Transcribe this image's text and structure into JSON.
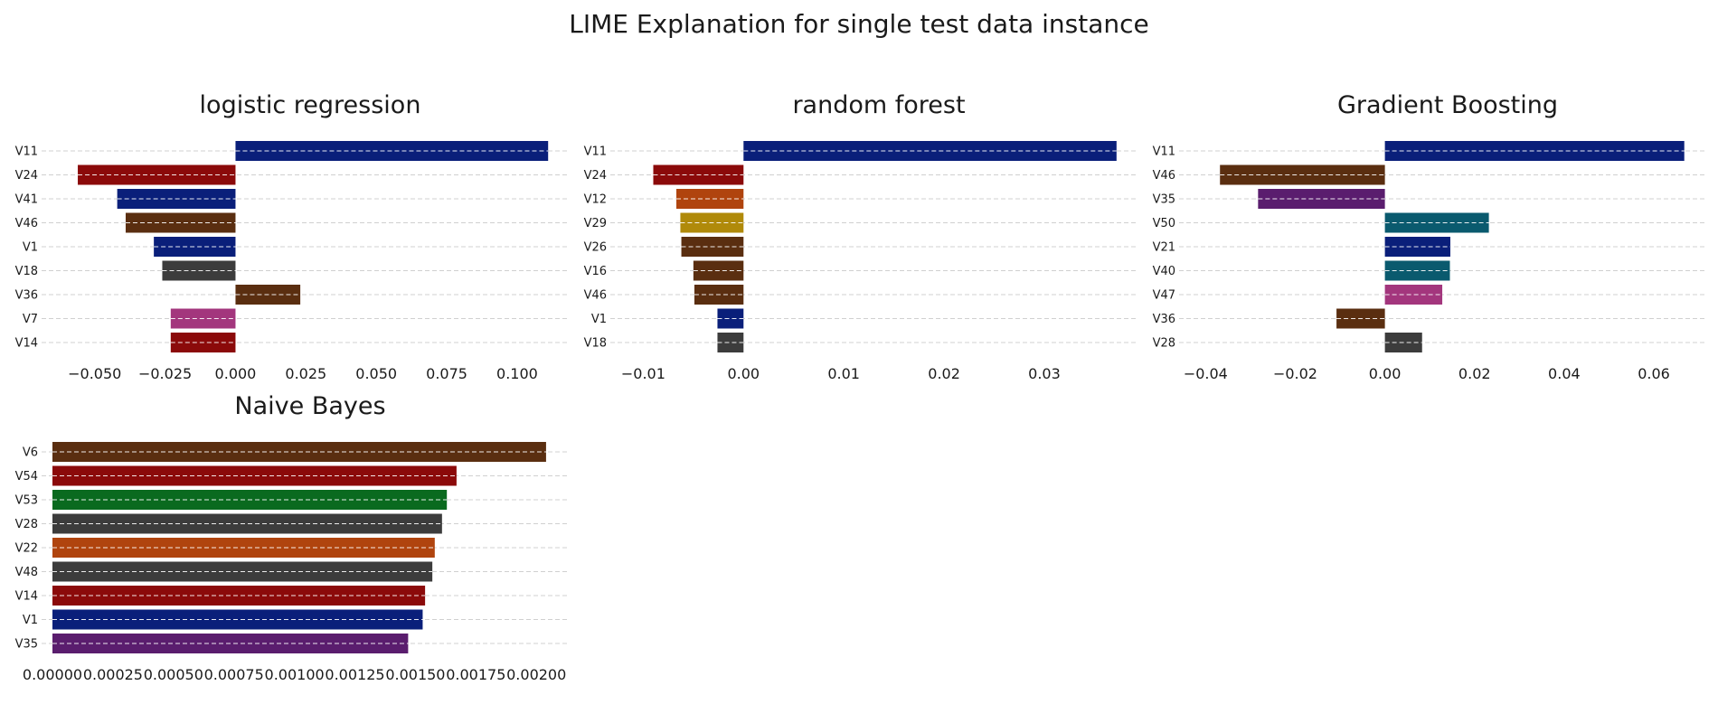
{
  "suptitle": "LIME Explanation for single test data instance",
  "chart_data": [
    {
      "type": "bar",
      "orientation": "horizontal",
      "title": "logistic regression",
      "categories": [
        "V11",
        "V24",
        "V41",
        "V46",
        "V1",
        "V18",
        "V36",
        "V7",
        "V14"
      ],
      "values": [
        0.111,
        -0.056,
        -0.042,
        -0.039,
        -0.029,
        -0.026,
        0.023,
        -0.023,
        -0.023
      ],
      "colors": [
        "#0a1f7a",
        "#8b0a0a",
        "#0a1f7a",
        "#5a2e10",
        "#0a1f7a",
        "#3c3c3c",
        "#5a2e10",
        "#a3367d",
        "#8b0a0a"
      ],
      "xlim": [
        -0.065,
        0.118
      ],
      "xticks": [
        -0.05,
        -0.025,
        0.0,
        0.025,
        0.05,
        0.075,
        0.1
      ],
      "xtick_labels": [
        "−0.050",
        "−0.025",
        "0.000",
        "0.025",
        "0.050",
        "0.075",
        "0.100"
      ],
      "grid": "horizontal dashed"
    },
    {
      "type": "bar",
      "orientation": "horizontal",
      "title": "random forest",
      "categories": [
        "V11",
        "V24",
        "V12",
        "V29",
        "V26",
        "V16",
        "V46",
        "V1",
        "V18"
      ],
      "values": [
        0.0372,
        -0.009,
        -0.0067,
        -0.0063,
        -0.0062,
        -0.005,
        -0.0049,
        -0.0026,
        -0.0026
      ],
      "colors": [
        "#0a1f7a",
        "#8b0a0a",
        "#b0440e",
        "#b08a0a",
        "#5a2e10",
        "#5a2e10",
        "#5a2e10",
        "#0a1f7a",
        "#3c3c3c"
      ],
      "xlim": [
        -0.0122,
        0.0392
      ],
      "xticks": [
        -0.01,
        0.0,
        0.01,
        0.02,
        0.03
      ],
      "xtick_labels": [
        "−0.01",
        "0.00",
        "0.01",
        "0.02",
        "0.03"
      ],
      "grid": "horizontal dashed"
    },
    {
      "type": "bar",
      "orientation": "horizontal",
      "title": "Gradient Boosting",
      "categories": [
        "V11",
        "V46",
        "V35",
        "V50",
        "V21",
        "V40",
        "V47",
        "V36",
        "V28"
      ],
      "values": [
        0.0668,
        -0.0368,
        -0.0283,
        0.0232,
        0.0146,
        0.0145,
        0.0128,
        -0.0108,
        0.0083
      ],
      "colors": [
        "#0a1f7a",
        "#5a2e10",
        "#5a1d6e",
        "#0a5a6e",
        "#0a1f7a",
        "#0a5a6e",
        "#a3367d",
        "#5a2e10",
        "#3c3c3c"
      ],
      "xlim": [
        -0.0435,
        0.0715
      ],
      "xticks": [
        -0.04,
        -0.02,
        0.0,
        0.02,
        0.04,
        0.06
      ],
      "xtick_labels": [
        "−0.04",
        "−0.02",
        "0.00",
        "0.02",
        "0.04",
        "0.06"
      ],
      "grid": "horizontal dashed"
    },
    {
      "type": "bar",
      "orientation": "horizontal",
      "title": "Naive Bayes",
      "categories": [
        "V6",
        "V54",
        "V53",
        "V28",
        "V22",
        "V48",
        "V14",
        "V1",
        "V35"
      ],
      "values": [
        0.00204,
        0.00167,
        0.00163,
        0.00161,
        0.00158,
        0.00157,
        0.00154,
        0.00153,
        0.00147
      ],
      "colors": [
        "#5a2e10",
        "#8b0a0a",
        "#0a6a1f",
        "#3c3c3c",
        "#b0440e",
        "#3c3c3c",
        "#8b0a0a",
        "#0a1f7a",
        "#5a1d6e"
      ],
      "xlim": [
        0.0,
        0.00213
      ],
      "xticks": [
        0.0,
        0.00025,
        0.0005,
        0.00075,
        0.001,
        0.00125,
        0.0015,
        0.00175,
        0.002
      ],
      "xtick_labels": [
        "0.00000",
        "0.00025",
        "0.00050",
        "0.00075",
        "0.00100",
        "0.00125",
        "0.00150",
        "0.00175",
        "0.00200"
      ],
      "grid": "horizontal dashed"
    }
  ]
}
